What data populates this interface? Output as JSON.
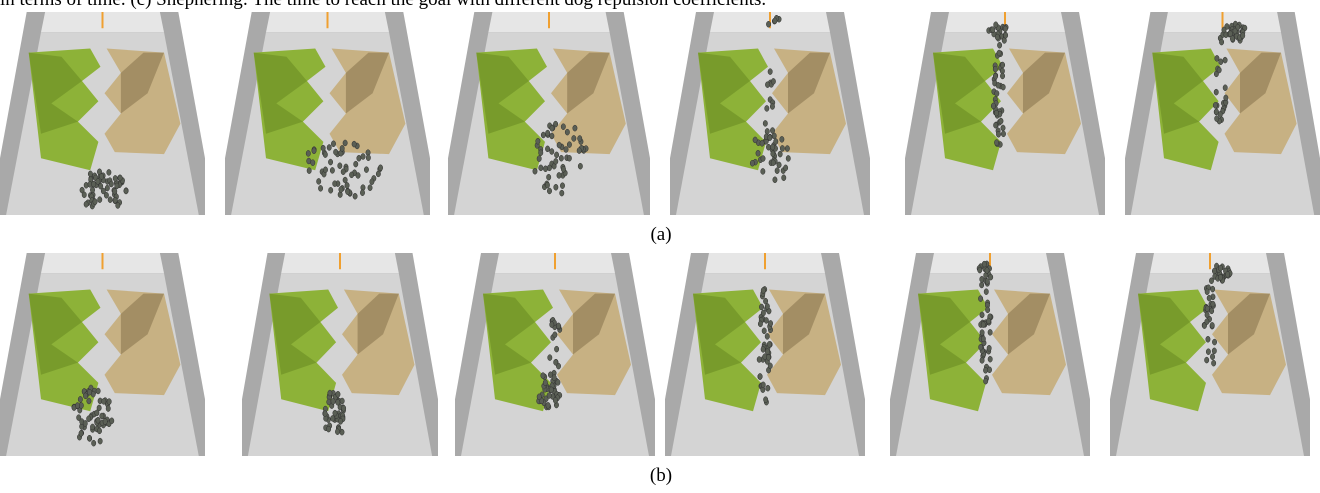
{
  "header": {
    "text": "in terms of time. (c) Shephering: The time to reach the goal with different dog repulsion coefficients."
  },
  "figure": {
    "captions": [
      "(a)",
      "(b)"
    ]
  }
}
